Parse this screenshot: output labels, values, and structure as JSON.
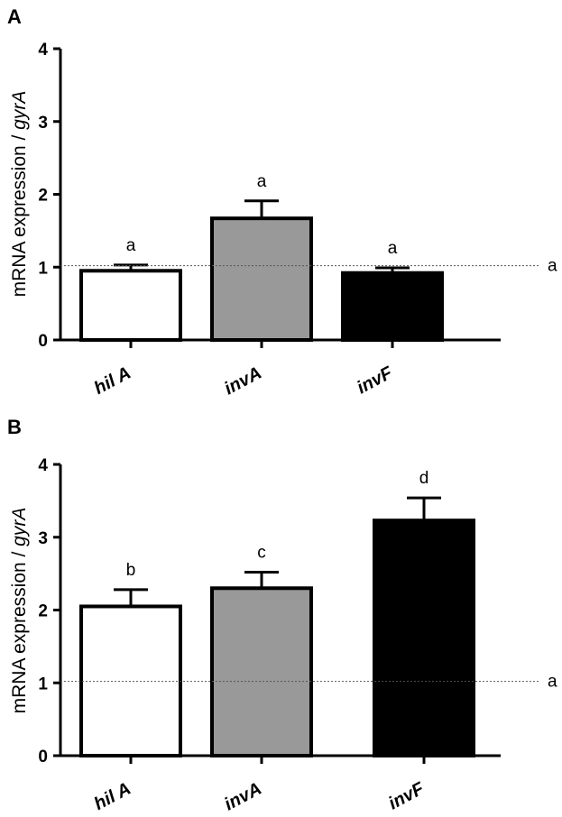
{
  "chart_data": [
    {
      "panel_label": "A",
      "type": "bar",
      "categories": [
        "hil A",
        "invA",
        "invF"
      ],
      "values": [
        0.95,
        1.67,
        0.92
      ],
      "errors": [
        0.08,
        0.24,
        0.07
      ],
      "significance": [
        "a",
        "a",
        "a"
      ],
      "bar_colors": [
        "#ffffff",
        "#999999",
        "#000000"
      ],
      "ylabel_main": "mRNA expression / ",
      "ylabel_italic": "gyrA",
      "ylim": [
        0,
        4
      ],
      "yticks": [
        "0",
        "1",
        "2",
        "3",
        "4"
      ],
      "reference_line": {
        "value": 1.02,
        "label": "a"
      },
      "grid": false
    },
    {
      "panel_label": "B",
      "type": "bar",
      "categories": [
        "hil A",
        "invA",
        "invF"
      ],
      "values": [
        2.05,
        2.3,
        3.23
      ],
      "errors": [
        0.23,
        0.22,
        0.31
      ],
      "significance": [
        "b",
        "c",
        "d"
      ],
      "bar_colors": [
        "#ffffff",
        "#999999",
        "#000000"
      ],
      "ylabel_main": "mRNA expression / ",
      "ylabel_italic": "gyrA",
      "ylim": [
        0,
        4
      ],
      "yticks": [
        "0",
        "1",
        "2",
        "3",
        "4"
      ],
      "reference_line": {
        "value": 1.02,
        "label": "a"
      },
      "grid": false
    }
  ]
}
